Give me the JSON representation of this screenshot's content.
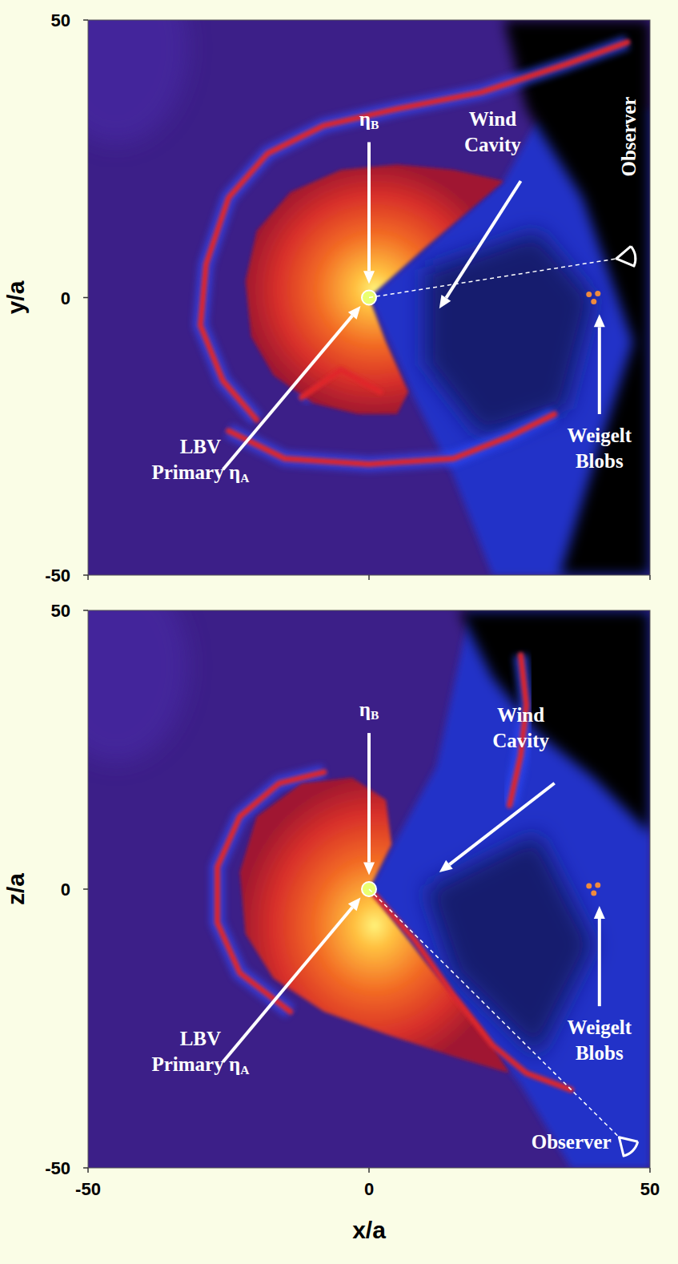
{
  "chart_data": [
    {
      "type": "image",
      "ylabel": "y/a",
      "xlim": [
        -50,
        50
      ],
      "ylim": [
        -50,
        50
      ],
      "xticks": [
        -50,
        0,
        50
      ],
      "yticks": [
        -50,
        0,
        50
      ],
      "tick_labels": "y",
      "annotations": {
        "secondary": "ηB",
        "cavity": [
          "Wind",
          "Cavity"
        ],
        "primary": [
          "LBV",
          "Primary ηA"
        ],
        "blobs": [
          "Weigelt",
          "Blobs"
        ],
        "observer": "Observer"
      }
    },
    {
      "type": "image",
      "xlabel": "x/a",
      "ylabel": "z/a",
      "xlim": [
        -50,
        50
      ],
      "ylim": [
        -50,
        50
      ],
      "xticks": [
        -50,
        0,
        50
      ],
      "yticks": [
        -50,
        0,
        50
      ],
      "tick_labels": true,
      "annotations": {
        "secondary": "ηB",
        "cavity": [
          "Wind",
          "Cavity"
        ],
        "primary": [
          "LBV",
          "Primary ηA"
        ],
        "blobs": [
          "Weigelt",
          "Blobs"
        ],
        "observer": "Observer"
      }
    }
  ]
}
